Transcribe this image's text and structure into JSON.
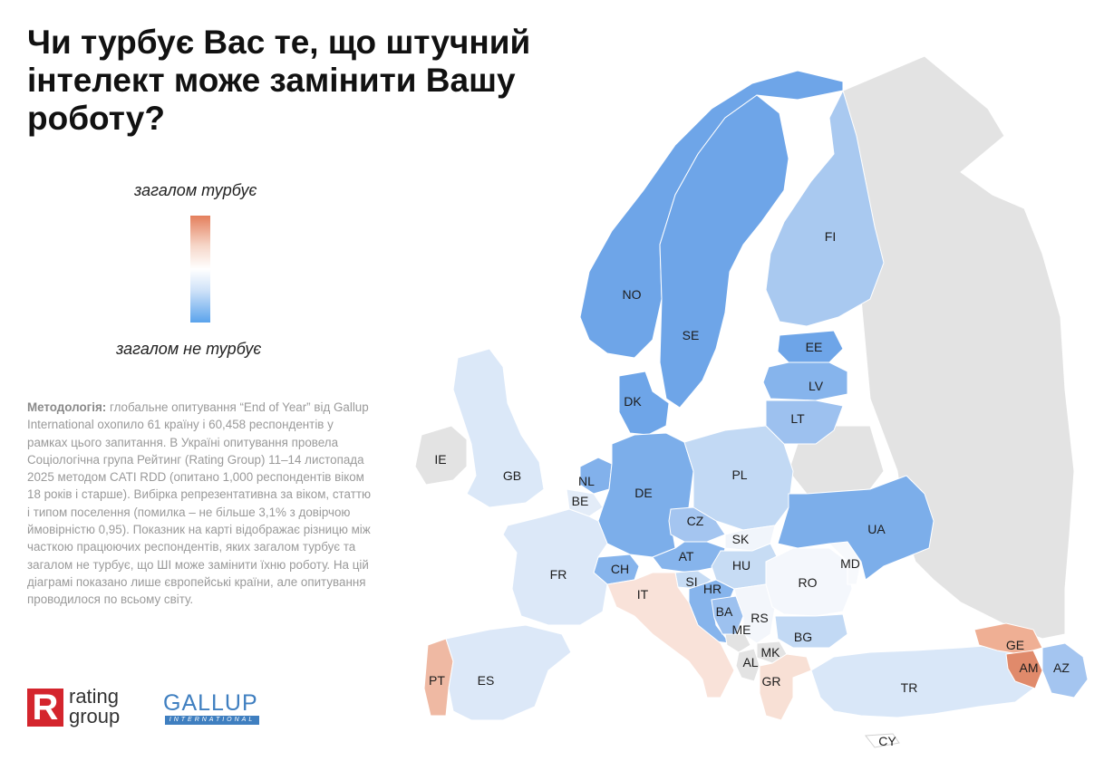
{
  "title": "Чи турбує Вас те, що штучний інтелект може замінити Вашу роботу?",
  "legend": {
    "top_label": "загалом турбує",
    "bottom_label": "загалом не турбує",
    "colors": {
      "worried": "#e47f5c",
      "neutral": "#ffffff",
      "not_worried": "#5aa3ec",
      "no_data": "#e3e3e3"
    }
  },
  "methodology": {
    "label": "Методологія:",
    "text": "глобальне опитування “End of Year” від Gallup International охопило 61 країну і 60,458 респондентів у рамках цього запитання. В Україні опитування провела Соціологічна група Рейтинг (Rating Group) 11–14 листопада 2025 методом CATI RDD (опитано 1,000 респондентів віком 18 років і старше). Вибірка репрезентативна за віком, статтю і типом поселення (помилка – не більше 3,1% з довірчою ймовірністю 0,95). Показник на карті відображає різницю між часткою працюючих респондентів, яких загалом турбує та загалом не турбує, що ШІ може замінити їхню роботу. На цій діаграмі показано лише європейські країни, але опитування проводилося по всьому світу."
  },
  "logos": {
    "rating_group": {
      "mark": "R",
      "line1": "rating",
      "line2": "group"
    },
    "gallup": {
      "name": "GALLUP",
      "sub": "INTERNATIONAL"
    }
  },
  "countries": [
    {
      "code": "NO",
      "color": "#6ea5e8"
    },
    {
      "code": "SE",
      "color": "#6ea5e8"
    },
    {
      "code": "FI",
      "color": "#a9c9f0"
    },
    {
      "code": "EE",
      "color": "#6ea5e8"
    },
    {
      "code": "LV",
      "color": "#86b4ec"
    },
    {
      "code": "LT",
      "color": "#9dc1ef"
    },
    {
      "code": "DK",
      "color": "#6ea5e8"
    },
    {
      "code": "IE",
      "color": "#e3e3e3"
    },
    {
      "code": "GB",
      "color": "#dbe8f8"
    },
    {
      "code": "NL",
      "color": "#82b1eb"
    },
    {
      "code": "BE",
      "color": "#e3ecf8"
    },
    {
      "code": "DE",
      "color": "#7caeea"
    },
    {
      "code": "PL",
      "color": "#c2d9f4"
    },
    {
      "code": "CZ",
      "color": "#a4c5f0"
    },
    {
      "code": "SK",
      "color": "#f1f5fb"
    },
    {
      "code": "AT",
      "color": "#86b4ec"
    },
    {
      "code": "CH",
      "color": "#86b4ec"
    },
    {
      "code": "FR",
      "color": "#dce8f8"
    },
    {
      "code": "HU",
      "color": "#c7dcf4"
    },
    {
      "code": "SI",
      "color": "#c7dcf4"
    },
    {
      "code": "HR",
      "color": "#86b4ec"
    },
    {
      "code": "BA",
      "color": "#9dc1ef"
    },
    {
      "code": "RS",
      "color": "#f3f6fb"
    },
    {
      "code": "ME",
      "color": "#e3e3e3"
    },
    {
      "code": "MK",
      "color": "#e3e3e3"
    },
    {
      "code": "AL",
      "color": "#e3e3e3"
    },
    {
      "code": "RO",
      "color": "#f4f7fc"
    },
    {
      "code": "MD",
      "color": "#f7f9fc"
    },
    {
      "code": "BG",
      "color": "#c2d9f4"
    },
    {
      "code": "UA",
      "color": "#7caeea"
    },
    {
      "code": "IT",
      "color": "#f9e2d9"
    },
    {
      "code": "GR",
      "color": "#f8e0d5"
    },
    {
      "code": "TR",
      "color": "#d9e7f8"
    },
    {
      "code": "GE",
      "color": "#efaf94"
    },
    {
      "code": "AM",
      "color": "#e08a6b"
    },
    {
      "code": "AZ",
      "color": "#a4c5f0"
    },
    {
      "code": "PT",
      "color": "#efb9a3"
    },
    {
      "code": "ES",
      "color": "#dce8f8"
    },
    {
      "code": "CY",
      "color": "#ffffff"
    }
  ]
}
